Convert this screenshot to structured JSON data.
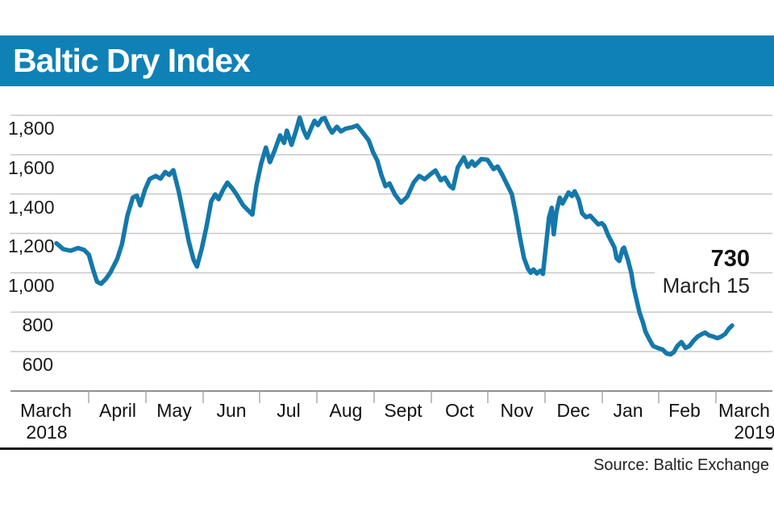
{
  "header": {
    "title": "Baltic Dry Index"
  },
  "annotation": {
    "value": "730",
    "date": "March 15"
  },
  "source": {
    "text": "Source: Baltic Exchange"
  },
  "colors": {
    "title_bar_blue": "#0f81b6",
    "line_blue": "#1478aa",
    "gridline_gray": "#c8c8c8",
    "axis_gray": "#8f8f8f",
    "tick_gray": "#ababab",
    "text_dark": "#1a1a1a",
    "rule_black": "#161616"
  },
  "chart_data": {
    "type": "line",
    "title": "Baltic Dry Index",
    "x_axis": {
      "months": [
        "March",
        "April",
        "May",
        "Jun",
        "Jul",
        "Aug",
        "Sept",
        "Oct",
        "Nov",
        "Dec",
        "Jan",
        "Feb",
        "March"
      ],
      "year_start": "2018",
      "year_end": "2019",
      "range_note": "March 15 2018 to March 15 2019"
    },
    "y_axis": {
      "ticks": [
        1800,
        1600,
        1400,
        1200,
        1000,
        800,
        600
      ],
      "tick_labels": [
        "1,800",
        "1,600",
        "1,400",
        "1,200",
        "1,000",
        "800",
        "600"
      ],
      "min_visible": 600,
      "max_visible": 1800,
      "grid": true
    },
    "end_annotation": {
      "value": 730,
      "label": "March 15"
    },
    "series": [
      {
        "name": "Baltic Dry Index",
        "points": [
          [
            0,
            1150
          ],
          [
            0.01,
            1120
          ],
          [
            0.021,
            1112
          ],
          [
            0.032,
            1126
          ],
          [
            0.041,
            1116
          ],
          [
            0.048,
            1092
          ],
          [
            0.054,
            1018
          ],
          [
            0.06,
            955
          ],
          [
            0.066,
            944
          ],
          [
            0.073,
            968
          ],
          [
            0.08,
            1002
          ],
          [
            0.09,
            1070
          ],
          [
            0.097,
            1145
          ],
          [
            0.105,
            1290
          ],
          [
            0.113,
            1382
          ],
          [
            0.119,
            1392
          ],
          [
            0.124,
            1342
          ],
          [
            0.131,
            1422
          ],
          [
            0.138,
            1476
          ],
          [
            0.147,
            1492
          ],
          [
            0.154,
            1478
          ],
          [
            0.161,
            1512
          ],
          [
            0.167,
            1497
          ],
          [
            0.173,
            1521
          ],
          [
            0.181,
            1413
          ],
          [
            0.189,
            1278
          ],
          [
            0.196,
            1158
          ],
          [
            0.203,
            1066
          ],
          [
            0.208,
            1032
          ],
          [
            0.215,
            1122
          ],
          [
            0.222,
            1232
          ],
          [
            0.229,
            1362
          ],
          [
            0.235,
            1398
          ],
          [
            0.24,
            1374
          ],
          [
            0.247,
            1424
          ],
          [
            0.253,
            1458
          ],
          [
            0.26,
            1430
          ],
          [
            0.267,
            1396
          ],
          [
            0.276,
            1344
          ],
          [
            0.284,
            1316
          ],
          [
            0.29,
            1296
          ],
          [
            0.296,
            1442
          ],
          [
            0.303,
            1554
          ],
          [
            0.31,
            1636
          ],
          [
            0.316,
            1562
          ],
          [
            0.323,
            1622
          ],
          [
            0.331,
            1698
          ],
          [
            0.337,
            1660
          ],
          [
            0.341,
            1722
          ],
          [
            0.348,
            1650
          ],
          [
            0.354,
            1716
          ],
          [
            0.36,
            1788
          ],
          [
            0.366,
            1722
          ],
          [
            0.371,
            1686
          ],
          [
            0.377,
            1734
          ],
          [
            0.382,
            1772
          ],
          [
            0.387,
            1750
          ],
          [
            0.393,
            1782
          ],
          [
            0.397,
            1786
          ],
          [
            0.403,
            1740
          ],
          [
            0.408,
            1712
          ],
          [
            0.415,
            1742
          ],
          [
            0.421,
            1718
          ],
          [
            0.428,
            1732
          ],
          [
            0.437,
            1738
          ],
          [
            0.445,
            1748
          ],
          [
            0.453,
            1714
          ],
          [
            0.462,
            1674
          ],
          [
            0.469,
            1610
          ],
          [
            0.475,
            1570
          ],
          [
            0.481,
            1496
          ],
          [
            0.487,
            1440
          ],
          [
            0.493,
            1454
          ],
          [
            0.501,
            1398
          ],
          [
            0.51,
            1356
          ],
          [
            0.519,
            1385
          ],
          [
            0.529,
            1460
          ],
          [
            0.537,
            1492
          ],
          [
            0.545,
            1475
          ],
          [
            0.554,
            1502
          ],
          [
            0.561,
            1520
          ],
          [
            0.569,
            1470
          ],
          [
            0.575,
            1484
          ],
          [
            0.582,
            1442
          ],
          [
            0.587,
            1428
          ],
          [
            0.594,
            1536
          ],
          [
            0.603,
            1586
          ],
          [
            0.609,
            1538
          ],
          [
            0.615,
            1566
          ],
          [
            0.619,
            1544
          ],
          [
            0.629,
            1578
          ],
          [
            0.638,
            1574
          ],
          [
            0.647,
            1527
          ],
          [
            0.653,
            1540
          ],
          [
            0.66,
            1497
          ],
          [
            0.666,
            1455
          ],
          [
            0.674,
            1400
          ],
          [
            0.68,
            1300
          ],
          [
            0.686,
            1180
          ],
          [
            0.692,
            1075
          ],
          [
            0.698,
            1020
          ],
          [
            0.702,
            1000
          ],
          [
            0.706,
            1017
          ],
          [
            0.711,
            996
          ],
          [
            0.716,
            1010
          ],
          [
            0.72,
            994
          ],
          [
            0.724,
            1120
          ],
          [
            0.729,
            1280
          ],
          [
            0.733,
            1330
          ],
          [
            0.736,
            1196
          ],
          [
            0.74,
            1308
          ],
          [
            0.745,
            1382
          ],
          [
            0.749,
            1352
          ],
          [
            0.758,
            1408
          ],
          [
            0.763,
            1390
          ],
          [
            0.767,
            1414
          ],
          [
            0.773,
            1372
          ],
          [
            0.778,
            1302
          ],
          [
            0.784,
            1282
          ],
          [
            0.79,
            1290
          ],
          [
            0.796,
            1268
          ],
          [
            0.802,
            1246
          ],
          [
            0.807,
            1252
          ],
          [
            0.811,
            1238
          ],
          [
            0.817,
            1188
          ],
          [
            0.822,
            1155
          ],
          [
            0.826,
            1128
          ],
          [
            0.829,
            1074
          ],
          [
            0.833,
            1060
          ],
          [
            0.838,
            1120
          ],
          [
            0.84,
            1128
          ],
          [
            0.846,
            1064
          ],
          [
            0.851,
            998
          ],
          [
            0.854,
            930
          ],
          [
            0.859,
            858
          ],
          [
            0.863,
            798
          ],
          [
            0.868,
            748
          ],
          [
            0.872,
            700
          ],
          [
            0.877,
            666
          ],
          [
            0.883,
            628
          ],
          [
            0.89,
            618
          ],
          [
            0.897,
            610
          ],
          [
            0.903,
            590
          ],
          [
            0.909,
            585
          ],
          [
            0.914,
            598
          ],
          [
            0.919,
            628
          ],
          [
            0.925,
            648
          ],
          [
            0.931,
            618
          ],
          [
            0.937,
            628
          ],
          [
            0.943,
            655
          ],
          [
            0.949,
            676
          ],
          [
            0.955,
            688
          ],
          [
            0.96,
            696
          ],
          [
            0.966,
            682
          ],
          [
            0.972,
            676
          ],
          [
            0.978,
            668
          ],
          [
            0.984,
            676
          ],
          [
            0.99,
            690
          ],
          [
            0.995,
            715
          ],
          [
            1,
            732
          ]
        ]
      }
    ]
  }
}
